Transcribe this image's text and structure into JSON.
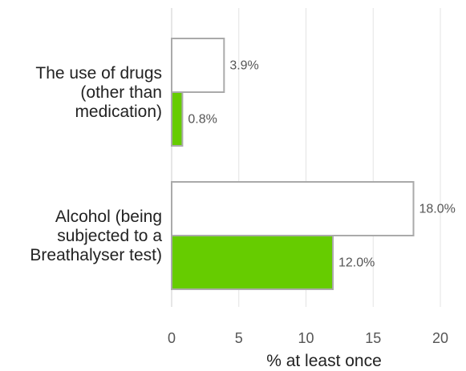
{
  "chart_data": {
    "type": "bar",
    "orientation": "horizontal",
    "categories": [
      [
        "The use of drugs",
        "(other than",
        "medication)"
      ],
      [
        "Alcohol (being",
        "subjected to a",
        "Breathalyser test)"
      ]
    ],
    "series": [
      {
        "values": [
          3.9,
          18.0
        ],
        "labels": [
          "3.9%",
          "18.0%"
        ],
        "color": "#ffffff",
        "stroke": "#aaaaaa"
      },
      {
        "values": [
          0.8,
          12.0
        ],
        "labels": [
          "0.8%",
          "12.0%"
        ],
        "color": "#66cc00",
        "stroke": "#aaaaaa"
      }
    ],
    "xlabel": "% at least once",
    "xlim": [
      0,
      20
    ],
    "xticks": [
      0,
      5,
      10,
      15,
      20
    ],
    "xtick_labels": [
      "0",
      "5",
      "10",
      "15",
      "20"
    ],
    "grid": true,
    "legend": "none"
  }
}
